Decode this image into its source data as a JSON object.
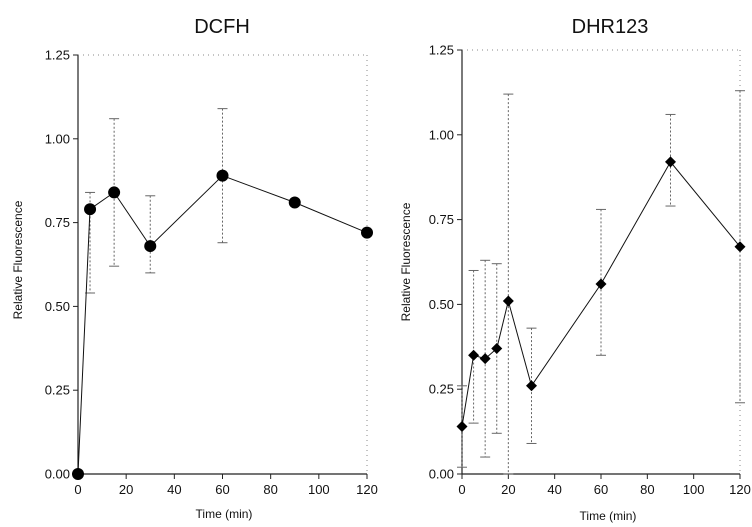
{
  "chart_data": [
    {
      "type": "line",
      "title": "DCFH",
      "xlabel": "Time (min)",
      "ylabel": "Relative Fluorescence",
      "xlim": [
        0,
        120
      ],
      "ylim": [
        0,
        1.25
      ],
      "x_ticks": [
        "0",
        "20",
        "40",
        "60",
        "80",
        "100",
        "120"
      ],
      "y_ticks": [
        "0.00",
        "0.25",
        "0.50",
        "0.75",
        "1.00",
        "1.25"
      ],
      "grid": false,
      "marker": "circle",
      "series": [
        {
          "x": [
            0,
            5,
            15,
            30,
            60,
            90,
            120
          ],
          "y": [
            0.0,
            0.79,
            0.84,
            0.68,
            0.89,
            0.81,
            0.72
          ],
          "err_low": [
            0.0,
            0.25,
            0.22,
            0.08,
            0.2,
            0.0,
            0.0
          ],
          "err_high": [
            0.0,
            0.05,
            0.22,
            0.15,
            0.2,
            0.0,
            0.0
          ]
        }
      ]
    },
    {
      "type": "line",
      "title": "DHR123",
      "xlabel": "Time (min)",
      "ylabel": "Relative Fluorescence",
      "xlim": [
        0,
        120
      ],
      "ylim": [
        0,
        1.25
      ],
      "x_ticks": [
        "0",
        "20",
        "40",
        "60",
        "80",
        "100",
        "120"
      ],
      "y_ticks": [
        "0.00",
        "0.25",
        "0.50",
        "0.75",
        "1.00",
        "1.25"
      ],
      "grid": false,
      "marker": "diamond",
      "series": [
        {
          "x": [
            0,
            5,
            10,
            15,
            20,
            30,
            60,
            90,
            120
          ],
          "y": [
            0.14,
            0.35,
            0.34,
            0.37,
            0.51,
            0.26,
            0.56,
            0.92,
            0.67
          ],
          "err_low": [
            0.12,
            0.2,
            0.29,
            0.25,
            0.51,
            0.17,
            0.21,
            0.13,
            0.46
          ],
          "err_high": [
            0.12,
            0.25,
            0.29,
            0.25,
            0.61,
            0.17,
            0.22,
            0.14,
            0.46
          ]
        }
      ]
    }
  ]
}
